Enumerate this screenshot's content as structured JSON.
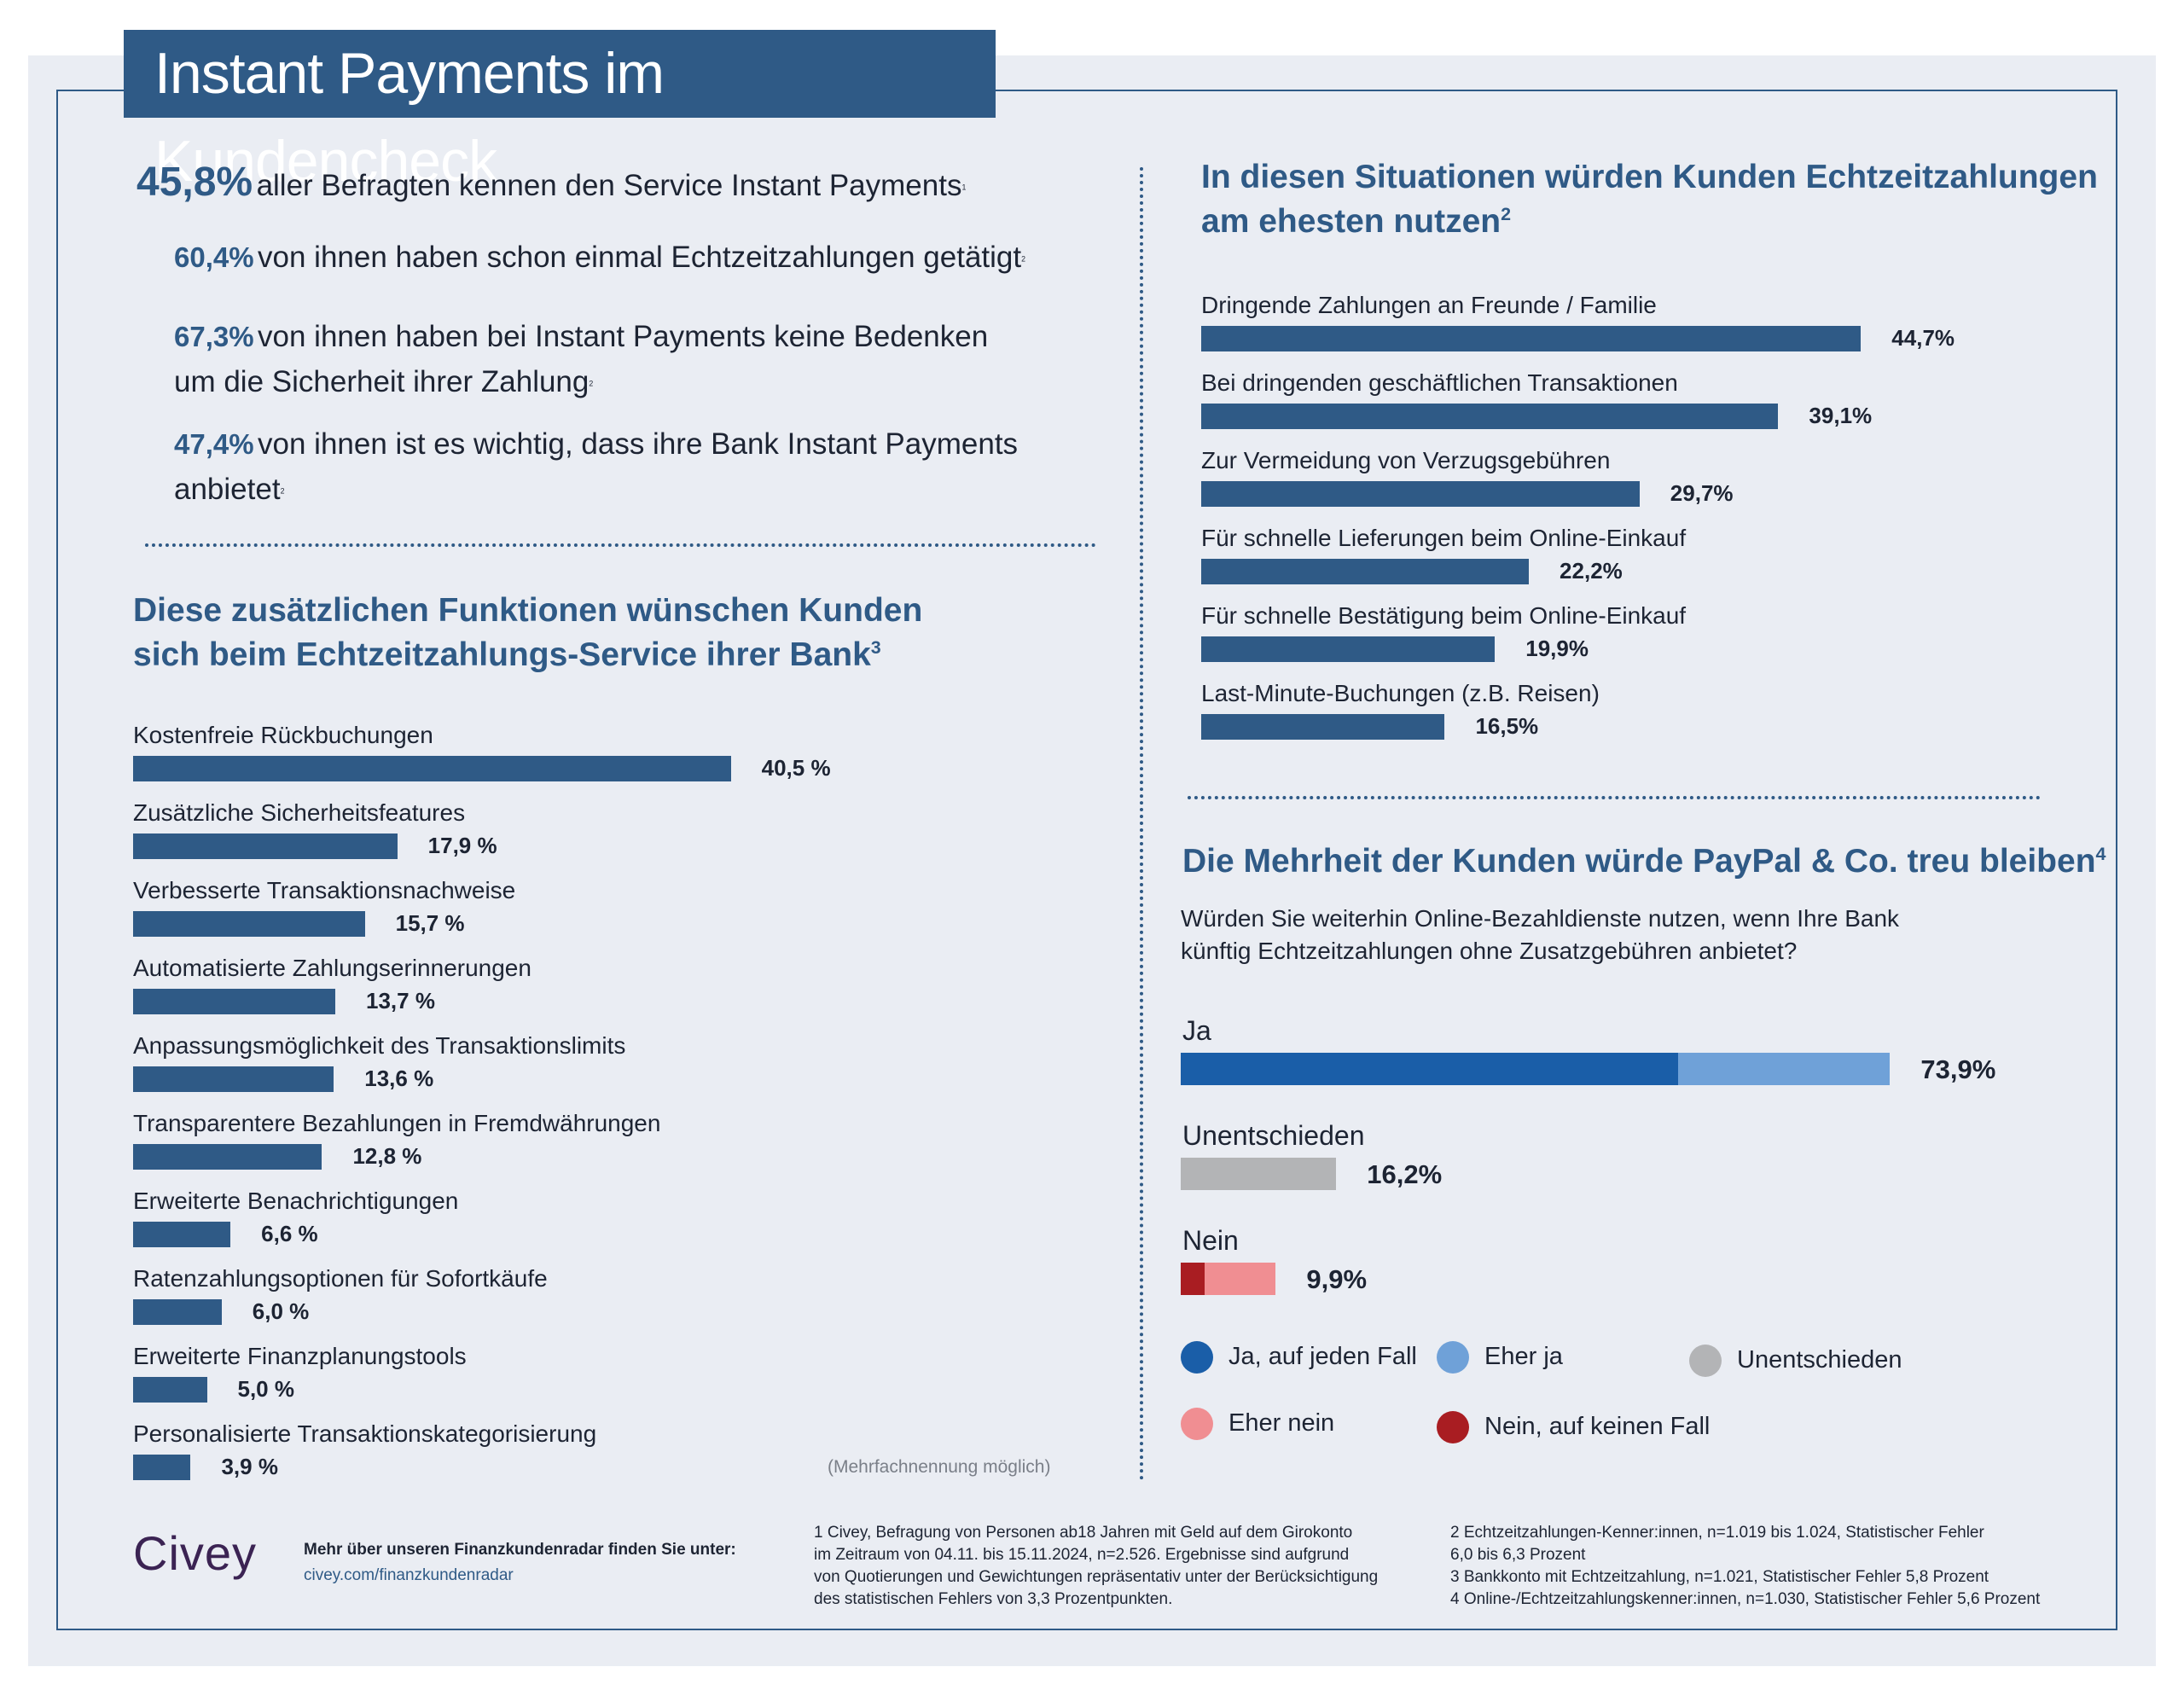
{
  "title": "Instant Payments im Kundencheck",
  "stats": {
    "main": {
      "value": "45,8%",
      "text": "aller Befragten kennen den Service Instant Payments",
      "note": "1"
    },
    "sub": [
      {
        "value": "60,4%",
        "line1": "von ihnen haben schon einmal Echtzeitzahlungen getätigt",
        "line2": "",
        "note": "2"
      },
      {
        "value": "67,3%",
        "line1": "von ihnen haben bei Instant Payments keine Bedenken",
        "line2": "um die Sicherheit ihrer Zahlung",
        "note": "2"
      },
      {
        "value": "47,4%",
        "line1": "von ihnen ist es wichtig, dass ihre Bank Instant Payments",
        "line2": "anbietet",
        "note": "2"
      }
    ]
  },
  "sections": {
    "functions": {
      "title_line1": "Diese zusätzlichen Funktionen wünschen Kunden",
      "title_line2": "sich beim Echtzeitzahlungs-Service ihrer Bank",
      "note": "3"
    },
    "situations": {
      "title_line1": "In diesen Situationen würden Kunden Echtzeitzahlungen",
      "title_line2": "am ehesten nutzen",
      "note": "2"
    },
    "paypal": {
      "title": "Die Mehrheit der Kunden würde PayPal & Co. treu bleiben",
      "note": "4",
      "question_line1": "Würden Sie weiterhin Online-Bezahldienste nutzen, wenn Ihre Bank",
      "question_line2": "künftig Echtzeitzahlungen ohne Zusatzgebühren anbietet?"
    }
  },
  "multiple_answers_note": "(Mehrfachnennung möglich)",
  "chart_data": [
    {
      "type": "bar",
      "orientation": "horizontal",
      "categories": [
        "Kostenfreie Rückbuchungen",
        "Zusätzliche Sicherheitsfeatures",
        "Verbesserte Transaktionsnachweise",
        "Automatisierte Zahlungserinnerungen",
        "Anpassungsmöglichkeit des Transaktionslimits",
        "Transparentere Bezahlungen in Fremdwährungen",
        "Erweiterte Benachrichtigungen",
        "Ratenzahlungsoptionen für Sofortkäufe",
        "Erweiterte Finanzplanungstools",
        "Personalisierte Transaktionskategorisierung"
      ],
      "values": [
        40.5,
        17.9,
        15.7,
        13.7,
        13.6,
        12.8,
        6.6,
        6.0,
        5.0,
        3.9
      ],
      "value_labels": [
        "40,5 %",
        "17,9 %",
        "15,7 %",
        "13,7 %",
        "13,6 %",
        "12,8 %",
        "6,6 %",
        "6,0 %",
        "5,0 %",
        "3,9 %"
      ],
      "xlim": [
        0,
        100
      ],
      "color": "#2f5a86"
    },
    {
      "type": "bar",
      "orientation": "horizontal",
      "categories": [
        "Dringende Zahlungen an Freunde / Familie",
        "Bei dringenden geschäftlichen Transaktionen",
        "Zur Vermeidung von Verzugsgebühren",
        "Für schnelle Lieferungen beim Online-Einkauf",
        "Für schnelle Bestätigung beim Online-Einkauf",
        "Last-Minute-Buchungen (z.B. Reisen)"
      ],
      "values": [
        44.7,
        39.1,
        29.7,
        22.2,
        19.9,
        16.5
      ],
      "value_labels": [
        "44,7%",
        "39,1%",
        "29,7%",
        "22,2%",
        "19,9%",
        "16,5%"
      ],
      "xlim": [
        0,
        100
      ],
      "color": "#2f5a86"
    },
    {
      "type": "bar",
      "orientation": "horizontal",
      "stacked": true,
      "categories": [
        "Ja",
        "Unentschieden",
        "Nein"
      ],
      "totals": [
        73.9,
        16.2,
        9.9
      ],
      "total_labels": [
        "73,9%",
        "16,2%",
        "9,9%"
      ],
      "segments": [
        [
          {
            "key": "ja_auf_jeden_fall",
            "value": 51.8
          },
          {
            "key": "eher_ja",
            "value": 22.1
          }
        ],
        [
          {
            "key": "unentschieden",
            "value": 16.2
          }
        ],
        [
          {
            "key": "nein_auf_keinen_fall",
            "value": 2.5
          },
          {
            "key": "eher_nein",
            "value": 7.4
          }
        ]
      ],
      "xlim": [
        0,
        100
      ],
      "legend": [
        {
          "key": "ja_auf_jeden_fall",
          "label": "Ja, auf jeden Fall",
          "color": "#1a5ea8"
        },
        {
          "key": "eher_ja",
          "label": "Eher ja",
          "color": "#6fa1d8"
        },
        {
          "key": "unentschieden",
          "label": "Unentschieden",
          "color": "#b3b4b6"
        },
        {
          "key": "eher_nein",
          "label": "Eher nein",
          "color": "#f08e92"
        },
        {
          "key": "nein_auf_keinen_fall",
          "label": "Nein, auf keinen Fall",
          "color": "#a91d22"
        }
      ]
    }
  ],
  "footer": {
    "logo": "Civey",
    "more_text": "Mehr über unseren Finanzkundenradar finden Sie unter:",
    "link": "civey.com/finanzkundenradar",
    "notes_col1": [
      "1 Civey, Befragung von Personen ab18 Jahren mit Geld auf dem Girokonto",
      "im Zeitraum von 04.11. bis 15.11.2024, n=2.526. Ergebnisse sind aufgrund",
      "von Quotierungen und Gewichtungen repräsentativ unter der Berücksichtigung",
      "des statistischen Fehlers von 3,3 Prozentpunkten."
    ],
    "notes_col2": [
      "2 Echtzeitzahlungen-Kenner:innen, n=1.019 bis 1.024, Statistischer Fehler",
      "6,0 bis 6,3 Prozent",
      "3 Bankkonto mit Echtzeitzahlung, n=1.021, Statistischer Fehler 5,8 Prozent",
      "4 Online-/Echtzeitzahlungskenner:innen, n=1.030, Statistischer Fehler 5,6 Prozent"
    ]
  }
}
